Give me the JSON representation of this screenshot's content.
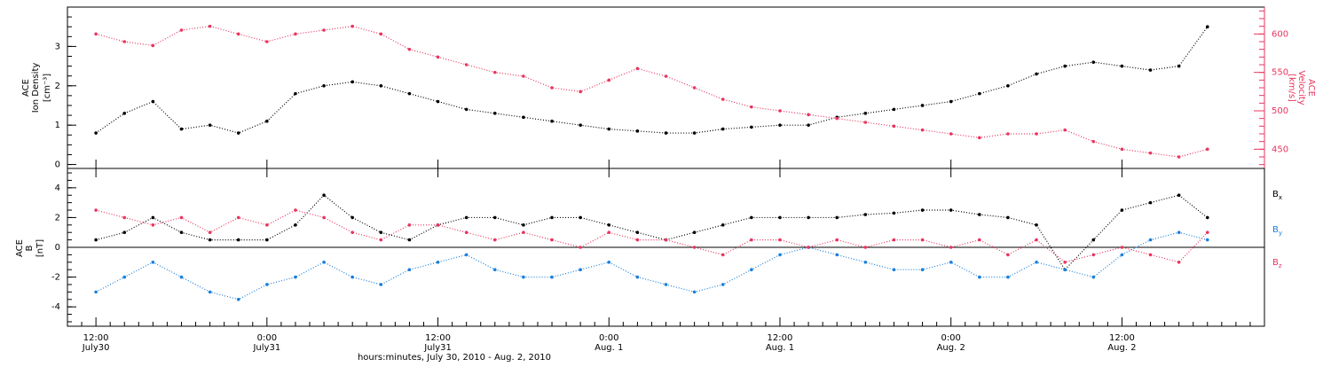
{
  "chart_data": [
    {
      "type": "scatter",
      "panel": "top",
      "ylabel_left": [
        "ACE",
        "Ion Density"
      ],
      "ylabel_left_unit": "[cm⁻³]",
      "ylabel_right": [
        "ACE",
        "Velocity"
      ],
      "ylabel_right_unit": "[km/s]",
      "ylim_left": [
        -0.1,
        4.0
      ],
      "ylim_right": [
        425,
        635
      ],
      "yticks_left": [
        0,
        1,
        2,
        3
      ],
      "yticks_right": [
        450,
        500,
        550,
        600
      ],
      "x_hours_range": [
        -2.0,
        82.0
      ],
      "grid": false,
      "series": [
        {
          "name": "Ion Density",
          "axis": "left",
          "color": "#000000",
          "x": [
            0,
            2,
            4,
            6,
            8,
            10,
            12,
            14,
            16,
            18,
            20,
            22,
            24,
            26,
            28,
            30,
            32,
            34,
            36,
            38,
            40,
            42,
            44,
            46,
            48,
            50,
            52,
            54,
            56,
            58,
            60,
            62,
            64,
            66,
            68,
            70,
            72,
            74,
            76,
            78
          ],
          "y": [
            0.8,
            1.3,
            1.6,
            0.9,
            1.0,
            0.8,
            1.1,
            1.8,
            2.0,
            2.1,
            2.0,
            1.8,
            1.6,
            1.4,
            1.3,
            1.2,
            1.1,
            1.0,
            0.9,
            0.85,
            0.8,
            0.8,
            0.9,
            0.95,
            1.0,
            1.0,
            1.2,
            1.3,
            1.4,
            1.5,
            1.6,
            1.8,
            2.0,
            2.3,
            2.5,
            2.6,
            2.5,
            2.4,
            2.5,
            3.5
          ]
        },
        {
          "name": "Velocity",
          "axis": "right",
          "color": "#e8355f",
          "x": [
            0,
            2,
            4,
            6,
            8,
            10,
            12,
            14,
            16,
            18,
            20,
            22,
            24,
            26,
            28,
            30,
            32,
            34,
            36,
            38,
            40,
            42,
            44,
            46,
            48,
            50,
            52,
            54,
            56,
            58,
            60,
            62,
            64,
            66,
            68,
            70,
            72,
            74,
            76,
            78
          ],
          "y": [
            600,
            590,
            585,
            605,
            610,
            600,
            590,
            600,
            605,
            610,
            600,
            580,
            570,
            560,
            550,
            545,
            530,
            525,
            540,
            555,
            545,
            530,
            515,
            505,
            500,
            495,
            490,
            485,
            480,
            475,
            470,
            465,
            470,
            470,
            475,
            460,
            450,
            445,
            440,
            450
          ]
        }
      ]
    },
    {
      "type": "scatter",
      "panel": "bottom",
      "ylabel_left": [
        "ACE",
        "B"
      ],
      "ylabel_left_unit": "[nT]",
      "ylim": [
        -5.3,
        5.3
      ],
      "yticks": [
        -4,
        -2,
        0,
        2,
        4
      ],
      "zero_line": true,
      "x_hours_range": [
        -2.0,
        82.0
      ],
      "grid": false,
      "legend": "right",
      "series": [
        {
          "name": "B_x",
          "label_main": "B",
          "label_sub": "x",
          "color": "#000000",
          "x": [
            0,
            2,
            4,
            6,
            8,
            10,
            12,
            14,
            16,
            18,
            20,
            22,
            24,
            26,
            28,
            30,
            32,
            34,
            36,
            38,
            40,
            42,
            44,
            46,
            48,
            50,
            52,
            54,
            56,
            58,
            60,
            62,
            64,
            66,
            68,
            70,
            72,
            74,
            76,
            78
          ],
          "y": [
            0.5,
            1.0,
            2.0,
            1.0,
            0.5,
            0.5,
            0.5,
            1.5,
            3.5,
            2.0,
            1.0,
            0.5,
            1.5,
            2.0,
            2.0,
            1.5,
            2.0,
            2.0,
            1.5,
            1.0,
            0.5,
            1.0,
            1.5,
            2.0,
            2.0,
            2.0,
            2.0,
            2.2,
            2.3,
            2.5,
            2.5,
            2.2,
            2.0,
            1.5,
            -1.5,
            0.5,
            2.5,
            3.0,
            3.5,
            2.0
          ]
        },
        {
          "name": "B_y",
          "label_main": "B",
          "label_sub": "y",
          "color": "#1a7fdc",
          "x": [
            0,
            2,
            4,
            6,
            8,
            10,
            12,
            14,
            16,
            18,
            20,
            22,
            24,
            26,
            28,
            30,
            32,
            34,
            36,
            38,
            40,
            42,
            44,
            46,
            48,
            50,
            52,
            54,
            56,
            58,
            60,
            62,
            64,
            66,
            68,
            70,
            72,
            74,
            76,
            78
          ],
          "y": [
            -3.0,
            -2.0,
            -1.0,
            -2.0,
            -3.0,
            -3.5,
            -2.5,
            -2.0,
            -1.0,
            -2.0,
            -2.5,
            -1.5,
            -1.0,
            -0.5,
            -1.5,
            -2.0,
            -2.0,
            -1.5,
            -1.0,
            -2.0,
            -2.5,
            -3.0,
            -2.5,
            -1.5,
            -0.5,
            0.0,
            -0.5,
            -1.0,
            -1.5,
            -1.5,
            -1.0,
            -2.0,
            -2.0,
            -1.0,
            -1.5,
            -2.0,
            -0.5,
            0.5,
            1.0,
            0.5
          ]
        },
        {
          "name": "B_z",
          "label_main": "B",
          "label_sub": "z",
          "color": "#e8355f",
          "x": [
            0,
            2,
            4,
            6,
            8,
            10,
            12,
            14,
            16,
            18,
            20,
            22,
            24,
            26,
            28,
            30,
            32,
            34,
            36,
            38,
            40,
            42,
            44,
            46,
            48,
            50,
            52,
            54,
            56,
            58,
            60,
            62,
            64,
            66,
            68,
            70,
            72,
            74,
            76,
            78
          ],
          "y": [
            2.5,
            2.0,
            1.5,
            2.0,
            1.0,
            2.0,
            1.5,
            2.5,
            2.0,
            1.0,
            0.5,
            1.5,
            1.5,
            1.0,
            0.5,
            1.0,
            0.5,
            0.0,
            1.0,
            0.5,
            0.5,
            0.0,
            -0.5,
            0.5,
            0.5,
            0.0,
            0.5,
            0.0,
            0.5,
            0.5,
            0.0,
            0.5,
            -0.5,
            0.5,
            -1.0,
            -0.5,
            0.0,
            -0.5,
            -1.0,
            1.0
          ]
        }
      ]
    }
  ],
  "x_axis": {
    "tick_labels": [
      {
        "hour": 0,
        "line1": "12:00",
        "line2": "July30"
      },
      {
        "hour": 12,
        "line1": "0:00",
        "line2": "July31"
      },
      {
        "hour": 24,
        "line1": "12:00",
        "line2": "July31"
      },
      {
        "hour": 36,
        "line1": "0:00",
        "line2": "Aug. 1"
      },
      {
        "hour": 48,
        "line1": "12:00",
        "line2": "Aug. 1"
      },
      {
        "hour": 60,
        "line1": "0:00",
        "line2": "Aug. 2"
      },
      {
        "hour": 72,
        "line1": "12:00",
        "line2": "Aug. 2"
      }
    ],
    "xlabel": "hours:minutes, July 30, 2010 - Aug.  2, 2010"
  }
}
